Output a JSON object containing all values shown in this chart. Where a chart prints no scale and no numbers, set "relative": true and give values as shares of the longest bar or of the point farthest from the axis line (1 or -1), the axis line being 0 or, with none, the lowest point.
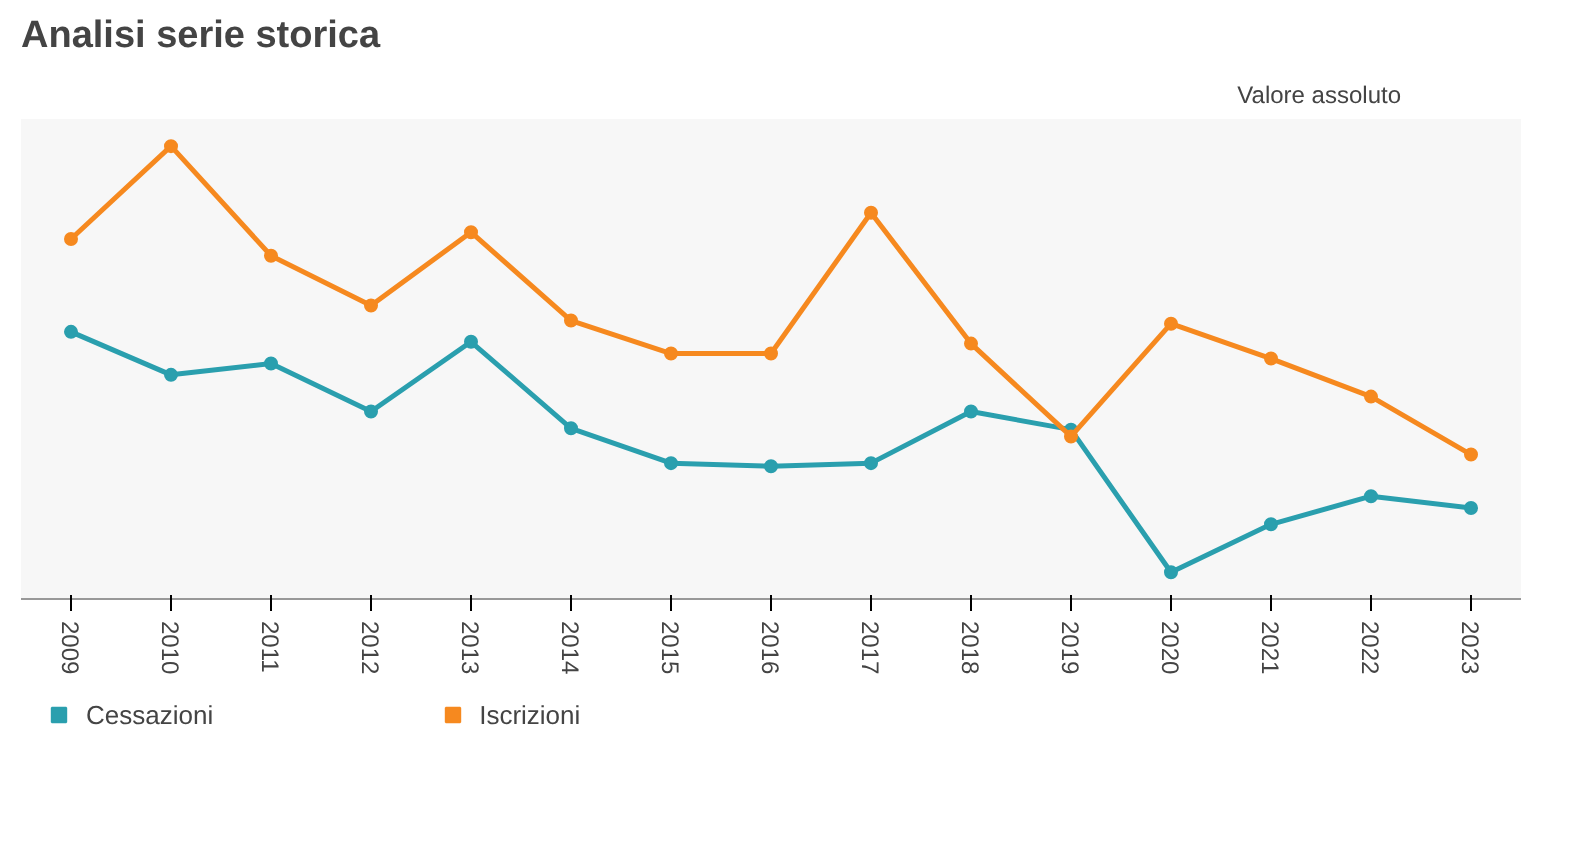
{
  "chart_data": {
    "type": "line",
    "title": "Analisi serie storica",
    "annotations": [
      "Valore assoluto"
    ],
    "categories": [
      "2009",
      "2010",
      "2011",
      "2012",
      "2013",
      "2014",
      "2015",
      "2016",
      "2017",
      "2018",
      "2019",
      "2020",
      "2021",
      "2022",
      "2023"
    ],
    "relative": true,
    "marker": "circle",
    "legend": "bottom",
    "grid": false,
    "series": [
      {
        "name": "Cessazioni",
        "color": "#2a9fae",
        "values": [
          0.59,
          0.495,
          0.52,
          0.414,
          0.568,
          0.377,
          0.3,
          0.293,
          0.3,
          0.414,
          0.374,
          0.059,
          0.165,
          0.227,
          0.201
        ]
      },
      {
        "name": "Iscrizioni",
        "color": "#f6891f",
        "values": [
          0.795,
          1,
          0.758,
          0.648,
          0.81,
          0.615,
          0.542,
          0.542,
          0.853,
          0.564,
          0.359,
          0.608,
          0.531,
          0.447,
          0.319
        ]
      }
    ]
  }
}
